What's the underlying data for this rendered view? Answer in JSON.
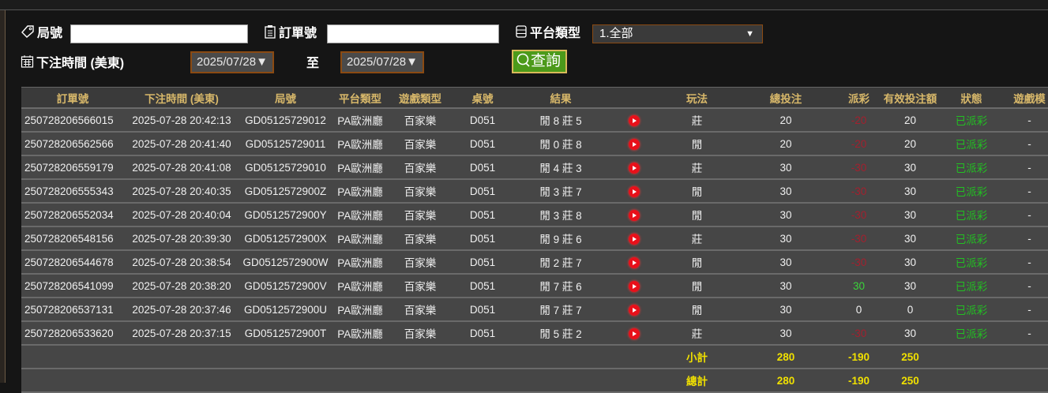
{
  "filters": {
    "round_label": "局號",
    "round_value": "",
    "order_label": "訂單號",
    "order_value": "",
    "platform_label": "平台類型",
    "platform_selected": "1.全部",
    "time_label": "下注時間 (美東)",
    "date_from": "2025/07/28▼",
    "to_label": "至",
    "date_to": "2025/07/28▼",
    "query_label": "查詢"
  },
  "colors": {
    "accent_header": "#d8b86a",
    "query_button": "#4c9a1a",
    "negative": "#a3202e",
    "status_green": "#22c022",
    "sum_yellow": "#f0e000"
  },
  "table": {
    "headers": [
      "訂單號",
      "下注時間 (美東)",
      "局號",
      "平台類型",
      "遊戲類型",
      "桌號",
      "結果",
      "",
      "玩法",
      "總投注",
      "派彩",
      "有效投注額",
      "狀態",
      "遊戲模"
    ],
    "rows": [
      {
        "order": "250728206566015",
        "time": "2025-07-28 20:42:13",
        "round": "GD05125729012",
        "platform": "PA歐洲廳",
        "game": "百家樂",
        "table": "D051",
        "result": "閒 8 莊 5",
        "play": "莊",
        "bet": "20",
        "payout": "-20",
        "valid": "20",
        "status": "已派彩",
        "mode": "-"
      },
      {
        "order": "250728206562566",
        "time": "2025-07-28 20:41:40",
        "round": "GD05125729011",
        "platform": "PA歐洲廳",
        "game": "百家樂",
        "table": "D051",
        "result": "閒 0 莊 8",
        "play": "閒",
        "bet": "20",
        "payout": "-20",
        "valid": "20",
        "status": "已派彩",
        "mode": "-"
      },
      {
        "order": "250728206559179",
        "time": "2025-07-28 20:41:08",
        "round": "GD05125729010",
        "platform": "PA歐洲廳",
        "game": "百家樂",
        "table": "D051",
        "result": "閒 4 莊 3",
        "play": "莊",
        "bet": "30",
        "payout": "-30",
        "valid": "30",
        "status": "已派彩",
        "mode": "-"
      },
      {
        "order": "250728206555343",
        "time": "2025-07-28 20:40:35",
        "round": "GD0512572900Z",
        "platform": "PA歐洲廳",
        "game": "百家樂",
        "table": "D051",
        "result": "閒 3 莊 7",
        "play": "閒",
        "bet": "30",
        "payout": "-30",
        "valid": "30",
        "status": "已派彩",
        "mode": "-"
      },
      {
        "order": "250728206552034",
        "time": "2025-07-28 20:40:04",
        "round": "GD0512572900Y",
        "platform": "PA歐洲廳",
        "game": "百家樂",
        "table": "D051",
        "result": "閒 3 莊 8",
        "play": "閒",
        "bet": "30",
        "payout": "-30",
        "valid": "30",
        "status": "已派彩",
        "mode": "-"
      },
      {
        "order": "250728206548156",
        "time": "2025-07-28 20:39:30",
        "round": "GD0512572900X",
        "platform": "PA歐洲廳",
        "game": "百家樂",
        "table": "D051",
        "result": "閒 9 莊 6",
        "play": "莊",
        "bet": "30",
        "payout": "-30",
        "valid": "30",
        "status": "已派彩",
        "mode": "-"
      },
      {
        "order": "250728206544678",
        "time": "2025-07-28 20:38:54",
        "round": "GD0512572900W",
        "platform": "PA歐洲廳",
        "game": "百家樂",
        "table": "D051",
        "result": "閒 2 莊 7",
        "play": "閒",
        "bet": "30",
        "payout": "-30",
        "valid": "30",
        "status": "已派彩",
        "mode": "-"
      },
      {
        "order": "250728206541099",
        "time": "2025-07-28 20:38:20",
        "round": "GD0512572900V",
        "platform": "PA歐洲廳",
        "game": "百家樂",
        "table": "D051",
        "result": "閒 7 莊 6",
        "play": "閒",
        "bet": "30",
        "payout": "30",
        "valid": "30",
        "status": "已派彩",
        "mode": "-"
      },
      {
        "order": "250728206537131",
        "time": "2025-07-28 20:37:46",
        "round": "GD0512572900U",
        "platform": "PA歐洲廳",
        "game": "百家樂",
        "table": "D051",
        "result": "閒 7 莊 7",
        "play": "閒",
        "bet": "30",
        "payout": "0",
        "valid": "0",
        "status": "已派彩",
        "mode": "-"
      },
      {
        "order": "250728206533620",
        "time": "2025-07-28 20:37:15",
        "round": "GD0512572900T",
        "platform": "PA歐洲廳",
        "game": "百家樂",
        "table": "D051",
        "result": "閒 5 莊 2",
        "play": "莊",
        "bet": "30",
        "payout": "-30",
        "valid": "30",
        "status": "已派彩",
        "mode": "-"
      }
    ],
    "subtotal": {
      "label": "小計",
      "bet": "280",
      "payout": "-190",
      "valid": "250"
    },
    "total": {
      "label": "總計",
      "bet": "280",
      "payout": "-190",
      "valid": "250"
    }
  }
}
